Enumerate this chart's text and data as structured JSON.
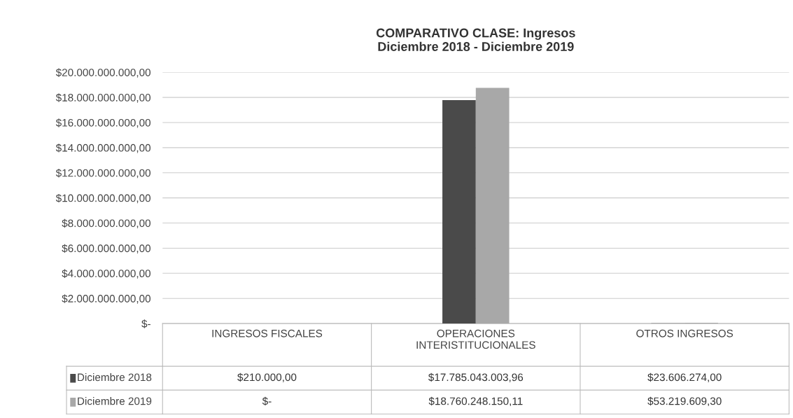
{
  "chart_data": {
    "type": "bar",
    "title": "COMPARATIVO CLASE: Ingresos\nDiciembre 2018 - Diciembre 2019",
    "categories": [
      "INGRESOS FISCALES",
      "OPERACIONES\nINTERISTITUCIONALES",
      "OTROS INGRESOS"
    ],
    "series": [
      {
        "name": "Diciembre 2018",
        "color": "#4a4a4a",
        "values": [
          210000,
          17785043003.96,
          23606274
        ],
        "value_labels": [
          "$210.000,00",
          "$17.785.043.003,96",
          "$23.606.274,00"
        ]
      },
      {
        "name": "Diciembre 2019",
        "color": "#a8a8a8",
        "values": [
          0,
          18760248150.11,
          53219609.3
        ],
        "value_labels": [
          "$-",
          "$18.760.248.150,11",
          "$53.219.609,30"
        ]
      }
    ],
    "ylim": [
      0,
      20000000000
    ],
    "yticks": [
      {
        "value": 0,
        "label": "$-"
      },
      {
        "value": 2000000000,
        "label": "$2.000.000.000,00"
      },
      {
        "value": 4000000000,
        "label": "$4.000.000.000,00"
      },
      {
        "value": 6000000000,
        "label": "$6.000.000.000,00"
      },
      {
        "value": 8000000000,
        "label": "$8.000.000.000,00"
      },
      {
        "value": 10000000000,
        "label": "$10.000.000.000,00"
      },
      {
        "value": 12000000000,
        "label": "$12.000.000.000,00"
      },
      {
        "value": 14000000000,
        "label": "$14.000.000.000,00"
      },
      {
        "value": 16000000000,
        "label": "$16.000.000.000,00"
      },
      {
        "value": 18000000000,
        "label": "$18.000.000.000,00"
      },
      {
        "value": 20000000000,
        "label": "$20.000.000.000,00"
      }
    ],
    "grid": "y",
    "legend": "bottom"
  }
}
